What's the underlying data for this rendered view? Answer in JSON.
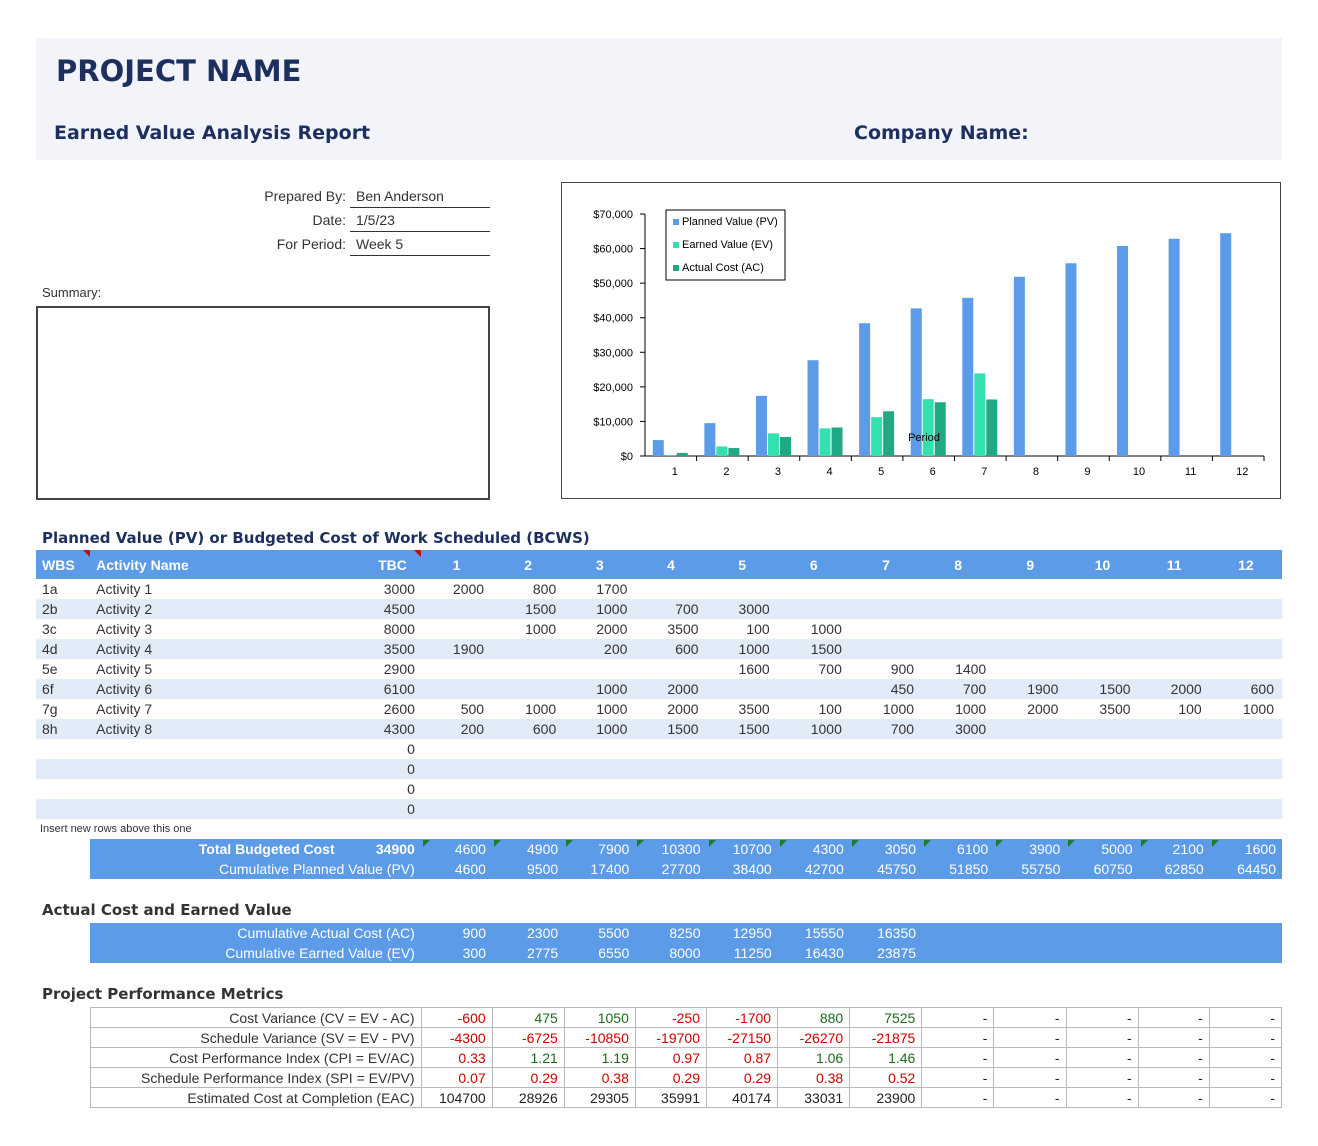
{
  "header": {
    "project_title": "PROJECT NAME",
    "report_subtitle": "Earned Value Analysis Report",
    "company_label": "Company Name:"
  },
  "meta": {
    "prepared_by_label": "Prepared By:",
    "prepared_by_value": "Ben Anderson",
    "date_label": "Date:",
    "date_value": "1/5/23",
    "period_label": "For Period:",
    "period_value": "Week 5",
    "summary_label": "Summary:"
  },
  "chart_data": {
    "type": "bar",
    "categories": [
      "1",
      "2",
      "3",
      "4",
      "5",
      "6",
      "7",
      "8",
      "9",
      "10",
      "11",
      "12"
    ],
    "series": [
      {
        "name": "Planned Value (PV)",
        "color": "#5b9be8",
        "values": [
          4600,
          9500,
          17400,
          27700,
          38400,
          42700,
          45750,
          51850,
          55750,
          60750,
          62850,
          64450
        ]
      },
      {
        "name": "Earned Value (EV)",
        "color": "#33e0b0",
        "values": [
          300,
          2775,
          6550,
          8000,
          11250,
          16430,
          23875,
          null,
          null,
          null,
          null,
          null
        ]
      },
      {
        "name": "Actual Cost (AC)",
        "color": "#21a884",
        "values": [
          900,
          2300,
          5500,
          8250,
          12950,
          15550,
          16350,
          null,
          null,
          null,
          null,
          null
        ]
      }
    ],
    "ylim": [
      0,
      70000
    ],
    "yticks": [
      "$0",
      "$10,000",
      "$20,000",
      "$30,000",
      "$40,000",
      "$50,000",
      "$60,000",
      "$70,000"
    ],
    "xlabel": "Period",
    "legend_position": "top-left"
  },
  "pv_section": {
    "title": "Planned Value (PV) or Budgeted Cost of Work Scheduled (BCWS)",
    "headers": [
      "WBS",
      "Activity Name",
      "TBC",
      "1",
      "2",
      "3",
      "4",
      "5",
      "6",
      "7",
      "8",
      "9",
      "10",
      "11",
      "12"
    ],
    "rows": [
      [
        "1a",
        "Activity 1",
        "3000",
        "2000",
        "800",
        "1700",
        "",
        "",
        "",
        "",
        "",
        "",
        "",
        "",
        ""
      ],
      [
        "2b",
        "Activity 2",
        "4500",
        "",
        "1500",
        "1000",
        "700",
        "3000",
        "",
        "",
        "",
        "",
        "",
        "",
        ""
      ],
      [
        "3c",
        "Activity 3",
        "8000",
        "",
        "1000",
        "2000",
        "3500",
        "100",
        "1000",
        "",
        "",
        "",
        "",
        "",
        ""
      ],
      [
        "4d",
        "Activity 4",
        "3500",
        "1900",
        "",
        "200",
        "600",
        "1000",
        "1500",
        "",
        "",
        "",
        "",
        "",
        ""
      ],
      [
        "5e",
        "Activity 5",
        "2900",
        "",
        "",
        "",
        "",
        "1600",
        "700",
        "900",
        "1400",
        "",
        "",
        "",
        ""
      ],
      [
        "6f",
        "Activity 6",
        "6100",
        "",
        "",
        "1000",
        "2000",
        "",
        "",
        "450",
        "700",
        "1900",
        "1500",
        "2000",
        "600"
      ],
      [
        "7g",
        "Activity 7",
        "2600",
        "500",
        "1000",
        "1000",
        "2000",
        "3500",
        "100",
        "1000",
        "1000",
        "2000",
        "3500",
        "100",
        "1000"
      ],
      [
        "8h",
        "Activity 8",
        "4300",
        "200",
        "600",
        "1000",
        "1500",
        "1500",
        "1000",
        "700",
        "3000",
        "",
        "",
        "",
        ""
      ],
      [
        "",
        "",
        "0",
        "",
        "",
        "",
        "",
        "",
        "",
        "",
        "",
        "",
        "",
        "",
        ""
      ],
      [
        "",
        "",
        "0",
        "",
        "",
        "",
        "",
        "",
        "",
        "",
        "",
        "",
        "",
        "",
        ""
      ],
      [
        "",
        "",
        "0",
        "",
        "",
        "",
        "",
        "",
        "",
        "",
        "",
        "",
        "",
        "",
        ""
      ],
      [
        "",
        "",
        "0",
        "",
        "",
        "",
        "",
        "",
        "",
        "",
        "",
        "",
        "",
        "",
        ""
      ]
    ],
    "insert_note": "Insert new rows above this one",
    "total_label": "Total Budgeted Cost",
    "total_value": "34900",
    "totals": [
      "4600",
      "4900",
      "7900",
      "10300",
      "10700",
      "4300",
      "3050",
      "6100",
      "3900",
      "5000",
      "2100",
      "1600"
    ],
    "cumulative_label": "Cumulative Planned Value (PV)",
    "cumulative": [
      "4600",
      "9500",
      "17400",
      "27700",
      "38400",
      "42700",
      "45750",
      "51850",
      "55750",
      "60750",
      "62850",
      "64450"
    ]
  },
  "ac_section": {
    "title": "Actual Cost and Earned Value",
    "ac_label": "Cumulative Actual Cost (AC)",
    "ac_values": [
      "900",
      "2300",
      "5500",
      "8250",
      "12950",
      "15550",
      "16350",
      "",
      "",
      "",
      "",
      ""
    ],
    "ev_label": "Cumulative Earned Value (EV)",
    "ev_values": [
      "300",
      "2775",
      "6550",
      "8000",
      "11250",
      "16430",
      "23875",
      "",
      "",
      "",
      "",
      ""
    ]
  },
  "metrics_section": {
    "title": "Project Performance Metrics",
    "rows": [
      {
        "label": "Cost Variance (CV = EV - AC)",
        "values": [
          "-600",
          "475",
          "1050",
          "-250",
          "-1700",
          "880",
          "7525",
          "-",
          "-",
          "-",
          "-",
          "-"
        ],
        "tone": [
          "neg",
          "pos",
          "pos",
          "neg",
          "neg",
          "pos",
          "pos",
          "dash",
          "dash",
          "dash",
          "dash",
          "dash"
        ]
      },
      {
        "label": "Schedule Variance (SV = EV - PV)",
        "values": [
          "-4300",
          "-6725",
          "-10850",
          "-19700",
          "-27150",
          "-26270",
          "-21875",
          "-",
          "-",
          "-",
          "-",
          "-"
        ],
        "tone": [
          "neg",
          "neg",
          "neg",
          "neg",
          "neg",
          "neg",
          "neg",
          "dash",
          "dash",
          "dash",
          "dash",
          "dash"
        ]
      },
      {
        "label": "Cost Performance Index (CPI = EV/AC)",
        "values": [
          "0.33",
          "1.21",
          "1.19",
          "0.97",
          "0.87",
          "1.06",
          "1.46",
          "-",
          "-",
          "-",
          "-",
          "-"
        ],
        "tone": [
          "neg",
          "pos",
          "pos",
          "neg",
          "neg",
          "pos",
          "pos",
          "dash",
          "dash",
          "dash",
          "dash",
          "dash"
        ]
      },
      {
        "label": "Schedule Performance Index (SPI = EV/PV)",
        "values": [
          "0.07",
          "0.29",
          "0.38",
          "0.29",
          "0.29",
          "0.38",
          "0.52",
          "-",
          "-",
          "-",
          "-",
          "-"
        ],
        "tone": [
          "neg",
          "neg",
          "neg",
          "neg",
          "neg",
          "neg",
          "neg",
          "dash",
          "dash",
          "dash",
          "dash",
          "dash"
        ]
      },
      {
        "label": "Estimated Cost at Completion (EAC)",
        "values": [
          "104700",
          "28926",
          "29305",
          "35991",
          "40174",
          "33031",
          "23900",
          "-",
          "-",
          "-",
          "-",
          "-"
        ],
        "tone": [
          "neu",
          "neu",
          "neu",
          "neu",
          "neu",
          "neu",
          "neu",
          "dash",
          "dash",
          "dash",
          "dash",
          "dash"
        ]
      }
    ]
  }
}
